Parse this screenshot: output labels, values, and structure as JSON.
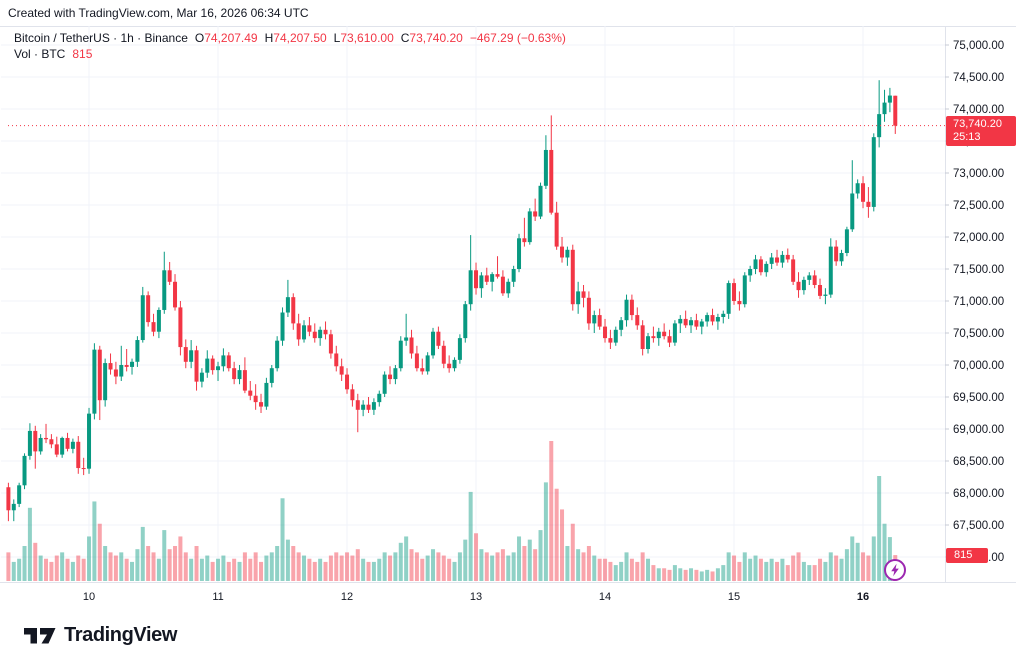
{
  "attribution": "Created with TradingView.com, Mar 16, 2026 06:34 UTC",
  "legend": {
    "series": "Bitcoin / TetherUS · 1h · Binance",
    "o_label": "O",
    "o_value": "74,207.49",
    "h_label": "H",
    "h_value": "74,207.50",
    "l_label": "L",
    "l_value": "73,610.00",
    "c_label": "C",
    "c_value": "73,740.20",
    "change": "−467.29 (−0.63%)",
    "vol_label": "Vol · BTC",
    "vol_value": "815"
  },
  "price_badge": {
    "price": "73,740.20",
    "countdown": "25:13"
  },
  "volume_badge": {
    "value": "815"
  },
  "logo": {
    "text": "TradingView"
  },
  "colors": {
    "up": "#089981",
    "down": "#f23645",
    "volume_up": "rgba(8,153,129,0.45)",
    "volume_down": "rgba(242,54,69,0.45)",
    "grid": "#f0f3fa",
    "border": "#e0e3eb",
    "tick": "#c7cbd4",
    "text": "#131722",
    "price_line": "#f23645",
    "badge_bg": "#f23645",
    "accent_purple": "#9c27b0"
  },
  "chart_data": {
    "type": "candlestick",
    "title": "Bitcoin / TetherUS · 1h · Binance",
    "symbol": "Bitcoin / TetherUS",
    "interval": "1h",
    "exchange": "Binance",
    "last_candle": {
      "open": 74207.49,
      "high": 74207.5,
      "low": 73610.0,
      "close": 73740.2,
      "change": -467.29,
      "change_pct": -0.63
    },
    "volume_btc_last": 815,
    "current_price": 73740.2,
    "y_axis": {
      "min": 67000,
      "max": 75000,
      "step": 500
    },
    "x_axis": {
      "labels": [
        {
          "i": 15,
          "label": "10"
        },
        {
          "i": 39,
          "label": "11"
        },
        {
          "i": 63,
          "label": "12"
        },
        {
          "i": 87,
          "label": "13"
        },
        {
          "i": 111,
          "label": "14"
        },
        {
          "i": 135,
          "label": "15"
        },
        {
          "i": 159,
          "label": "16",
          "bold": true
        }
      ]
    },
    "legend_position": "top-left",
    "grid": true,
    "candles": [
      [
        68090,
        68160,
        67560,
        67730
      ],
      [
        67730,
        67900,
        67560,
        67830
      ],
      [
        67830,
        68160,
        67780,
        68120
      ],
      [
        68120,
        68620,
        68060,
        68580
      ],
      [
        68580,
        69090,
        68520,
        68970
      ],
      [
        68970,
        69050,
        68380,
        68650
      ],
      [
        68650,
        68920,
        68600,
        68860
      ],
      [
        68860,
        69080,
        68780,
        68840
      ],
      [
        68840,
        68920,
        68700,
        68760
      ],
      [
        68760,
        68880,
        68560,
        68600
      ],
      [
        68600,
        68880,
        68550,
        68860
      ],
      [
        68860,
        68940,
        68650,
        68690
      ],
      [
        68690,
        68850,
        68620,
        68800
      ],
      [
        68800,
        68890,
        68300,
        68390
      ],
      [
        68390,
        68550,
        68280,
        68380
      ],
      [
        68380,
        69330,
        68300,
        69240
      ],
      [
        69240,
        70340,
        69150,
        70240
      ],
      [
        70240,
        70300,
        69140,
        69450
      ],
      [
        69450,
        70100,
        69350,
        70030
      ],
      [
        70030,
        70180,
        69850,
        69930
      ],
      [
        69930,
        70050,
        69700,
        69820
      ],
      [
        69820,
        70300,
        69750,
        70000
      ],
      [
        70000,
        70250,
        69900,
        69970
      ],
      [
        69970,
        70100,
        69850,
        70050
      ],
      [
        70050,
        70450,
        69970,
        70390
      ],
      [
        70390,
        71220,
        70350,
        71090
      ],
      [
        71090,
        71150,
        70600,
        70670
      ],
      [
        70670,
        70800,
        70450,
        70520
      ],
      [
        70520,
        70900,
        70420,
        70860
      ],
      [
        70860,
        71770,
        70800,
        71480
      ],
      [
        71480,
        71610,
        71250,
        71300
      ],
      [
        71300,
        71420,
        70850,
        70900
      ],
      [
        70900,
        71000,
        70150,
        70280
      ],
      [
        70280,
        70400,
        69950,
        70050
      ],
      [
        70050,
        70390,
        69950,
        70230
      ],
      [
        70230,
        70300,
        69600,
        69740
      ],
      [
        69740,
        69950,
        69650,
        69880
      ],
      [
        69880,
        70230,
        69800,
        70100
      ],
      [
        70100,
        70150,
        69850,
        69920
      ],
      [
        69920,
        70050,
        69750,
        69980
      ],
      [
        69980,
        70260,
        69900,
        70150
      ],
      [
        70150,
        70200,
        69900,
        69950
      ],
      [
        69950,
        70050,
        69700,
        69780
      ],
      [
        69780,
        70000,
        69700,
        69920
      ],
      [
        69920,
        70120,
        69560,
        69600
      ],
      [
        69600,
        69750,
        69450,
        69520
      ],
      [
        69520,
        69700,
        69300,
        69420
      ],
      [
        69420,
        69550,
        69250,
        69350
      ],
      [
        69350,
        69800,
        69300,
        69720
      ],
      [
        69720,
        70000,
        69650,
        69950
      ],
      [
        69950,
        70450,
        69900,
        70380
      ],
      [
        70380,
        70900,
        70300,
        70820
      ],
      [
        70820,
        71330,
        70750,
        71060
      ],
      [
        71060,
        71120,
        70550,
        70650
      ],
      [
        70650,
        70800,
        70300,
        70400
      ],
      [
        70400,
        70700,
        70350,
        70620
      ],
      [
        70620,
        70750,
        70450,
        70520
      ],
      [
        70520,
        70650,
        70350,
        70420
      ],
      [
        70420,
        70600,
        70300,
        70550
      ],
      [
        70550,
        70680,
        70400,
        70480
      ],
      [
        70480,
        70550,
        70100,
        70180
      ],
      [
        70180,
        70300,
        69900,
        69980
      ],
      [
        69980,
        70100,
        69750,
        69850
      ],
      [
        69850,
        69950,
        69550,
        69620
      ],
      [
        69620,
        69700,
        69350,
        69450
      ],
      [
        69450,
        69550,
        68950,
        69300
      ],
      [
        69300,
        69450,
        69200,
        69380
      ],
      [
        69380,
        69500,
        69250,
        69300
      ],
      [
        69300,
        69480,
        69220,
        69420
      ],
      [
        69420,
        69600,
        69350,
        69550
      ],
      [
        69550,
        69900,
        69500,
        69850
      ],
      [
        69850,
        69980,
        69700,
        69780
      ],
      [
        69780,
        70000,
        69700,
        69950
      ],
      [
        69950,
        70450,
        69900,
        70380
      ],
      [
        70380,
        70800,
        70300,
        70430
      ],
      [
        70430,
        70550,
        70100,
        70180
      ],
      [
        70180,
        70300,
        69900,
        69950
      ],
      [
        69950,
        70100,
        69850,
        69900
      ],
      [
        69900,
        70200,
        69850,
        70150
      ],
      [
        70150,
        70580,
        70100,
        70520
      ],
      [
        70520,
        70600,
        70250,
        70300
      ],
      [
        70300,
        70380,
        69950,
        70020
      ],
      [
        70020,
        70150,
        69880,
        69950
      ],
      [
        69950,
        70120,
        69900,
        70080
      ],
      [
        70080,
        70480,
        70020,
        70420
      ],
      [
        70420,
        71000,
        70350,
        70950
      ],
      [
        70950,
        72030,
        70850,
        71480
      ],
      [
        71480,
        71600,
        71100,
        71200
      ],
      [
        71200,
        71450,
        71050,
        71400
      ],
      [
        71400,
        71520,
        71250,
        71300
      ],
      [
        71300,
        71450,
        71150,
        71420
      ],
      [
        71420,
        71700,
        71350,
        71380
      ],
      [
        71380,
        71480,
        71080,
        71120
      ],
      [
        71120,
        71350,
        71050,
        71300
      ],
      [
        71300,
        71550,
        71220,
        71500
      ],
      [
        71500,
        72050,
        71450,
        71980
      ],
      [
        71980,
        72300,
        71850,
        71920
      ],
      [
        71920,
        72450,
        71880,
        72400
      ],
      [
        72400,
        72600,
        72250,
        72320
      ],
      [
        72320,
        72850,
        72280,
        72800
      ],
      [
        72800,
        73590,
        72750,
        73360
      ],
      [
        73360,
        73900,
        72350,
        72380
      ],
      [
        72380,
        72550,
        71800,
        71850
      ],
      [
        71850,
        72000,
        71600,
        71680
      ],
      [
        71680,
        71850,
        71550,
        71800
      ],
      [
        71800,
        71880,
        70850,
        70950
      ],
      [
        70950,
        71300,
        70800,
        71150
      ],
      [
        71150,
        71250,
        70900,
        71050
      ],
      [
        71050,
        71150,
        70550,
        70650
      ],
      [
        70650,
        70850,
        70500,
        70780
      ],
      [
        70780,
        70880,
        70550,
        70600
      ],
      [
        70600,
        70720,
        70350,
        70420
      ],
      [
        70420,
        70550,
        70250,
        70350
      ],
      [
        70350,
        70600,
        70300,
        70550
      ],
      [
        70550,
        70750,
        70450,
        70700
      ],
      [
        70700,
        71100,
        70600,
        71020
      ],
      [
        71020,
        71100,
        70700,
        70780
      ],
      [
        70780,
        70900,
        70550,
        70620
      ],
      [
        70620,
        70700,
        70150,
        70250
      ],
      [
        70250,
        70500,
        70180,
        70450
      ],
      [
        70450,
        70600,
        70350,
        70420
      ],
      [
        70420,
        70580,
        70300,
        70520
      ],
      [
        70520,
        70650,
        70400,
        70450
      ],
      [
        70450,
        70550,
        70280,
        70350
      ],
      [
        70350,
        70700,
        70300,
        70650
      ],
      [
        70650,
        70780,
        70500,
        70720
      ],
      [
        70720,
        70850,
        70580,
        70620
      ],
      [
        70620,
        70750,
        70500,
        70700
      ],
      [
        70700,
        70800,
        70550,
        70600
      ],
      [
        70600,
        70720,
        70480,
        70680
      ],
      [
        70680,
        70820,
        70600,
        70780
      ],
      [
        70780,
        70880,
        70620,
        70680
      ],
      [
        70680,
        70800,
        70550,
        70750
      ],
      [
        70750,
        70850,
        70650,
        70800
      ],
      [
        70800,
        71320,
        70720,
        71280
      ],
      [
        71280,
        71350,
        70940,
        71000
      ],
      [
        71000,
        71150,
        70850,
        70950
      ],
      [
        70950,
        71450,
        70900,
        71400
      ],
      [
        71400,
        71550,
        71300,
        71500
      ],
      [
        71500,
        71720,
        71420,
        71650
      ],
      [
        71650,
        71700,
        71400,
        71450
      ],
      [
        71450,
        71620,
        71380,
        71580
      ],
      [
        71580,
        71750,
        71500,
        71680
      ],
      [
        71680,
        71800,
        71550,
        71600
      ],
      [
        71600,
        71780,
        71520,
        71720
      ],
      [
        71720,
        71820,
        71600,
        71650
      ],
      [
        71650,
        71720,
        71250,
        71300
      ],
      [
        71300,
        71450,
        71050,
        71170
      ],
      [
        71170,
        71380,
        71100,
        71330
      ],
      [
        71330,
        71450,
        71250,
        71400
      ],
      [
        71400,
        71480,
        71200,
        71250
      ],
      [
        71250,
        71350,
        71030,
        71080
      ],
      [
        71080,
        71200,
        70950,
        71100
      ],
      [
        71100,
        71980,
        71050,
        71850
      ],
      [
        71850,
        71950,
        71550,
        71620
      ],
      [
        71620,
        71800,
        71550,
        71750
      ],
      [
        71750,
        72160,
        71700,
        72120
      ],
      [
        72120,
        73200,
        72080,
        72680
      ],
      [
        72680,
        72900,
        72600,
        72840
      ],
      [
        72840,
        72950,
        72450,
        72550
      ],
      [
        72550,
        72780,
        72300,
        72470
      ],
      [
        72470,
        73620,
        72400,
        73560
      ],
      [
        73560,
        74450,
        73400,
        73920
      ],
      [
        73920,
        74300,
        73800,
        74100
      ],
      [
        74100,
        74330,
        73950,
        74210
      ],
      [
        74207.49,
        74207.5,
        73610,
        73740.2
      ]
    ],
    "volumes": [
      900,
      600,
      700,
      1100,
      2300,
      1200,
      800,
      700,
      600,
      800,
      900,
      700,
      600,
      800,
      700,
      1400,
      2500,
      1800,
      1100,
      900,
      800,
      900,
      700,
      600,
      1000,
      1700,
      1100,
      900,
      700,
      1600,
      1000,
      1100,
      1400,
      900,
      700,
      1100,
      700,
      800,
      600,
      700,
      800,
      600,
      700,
      600,
      900,
      700,
      900,
      600,
      800,
      900,
      1100,
      2600,
      1300,
      1100,
      900,
      800,
      700,
      600,
      700,
      600,
      800,
      900,
      800,
      900,
      800,
      1000,
      700,
      600,
      600,
      700,
      900,
      800,
      900,
      1200,
      1400,
      1000,
      900,
      700,
      800,
      1000,
      900,
      800,
      700,
      600,
      900,
      1300,
      2800,
      1500,
      1000,
      900,
      800,
      900,
      1000,
      800,
      900,
      1400,
      1100,
      1300,
      1000,
      1600,
      3100,
      4400,
      2900,
      2250,
      1100,
      1800,
      1000,
      900,
      1100,
      800,
      700,
      700,
      600,
      500,
      600,
      900,
      700,
      600,
      900,
      700,
      500,
      400,
      400,
      350,
      500,
      400,
      350,
      400,
      350,
      300,
      350,
      300,
      400,
      500,
      900,
      800,
      600,
      900,
      700,
      800,
      700,
      600,
      700,
      600,
      700,
      500,
      800,
      900,
      600,
      500,
      500,
      700,
      600,
      900,
      800,
      700,
      1000,
      1400,
      1200,
      900,
      800,
      1400,
      3300,
      1800,
      1380,
      815
    ]
  }
}
